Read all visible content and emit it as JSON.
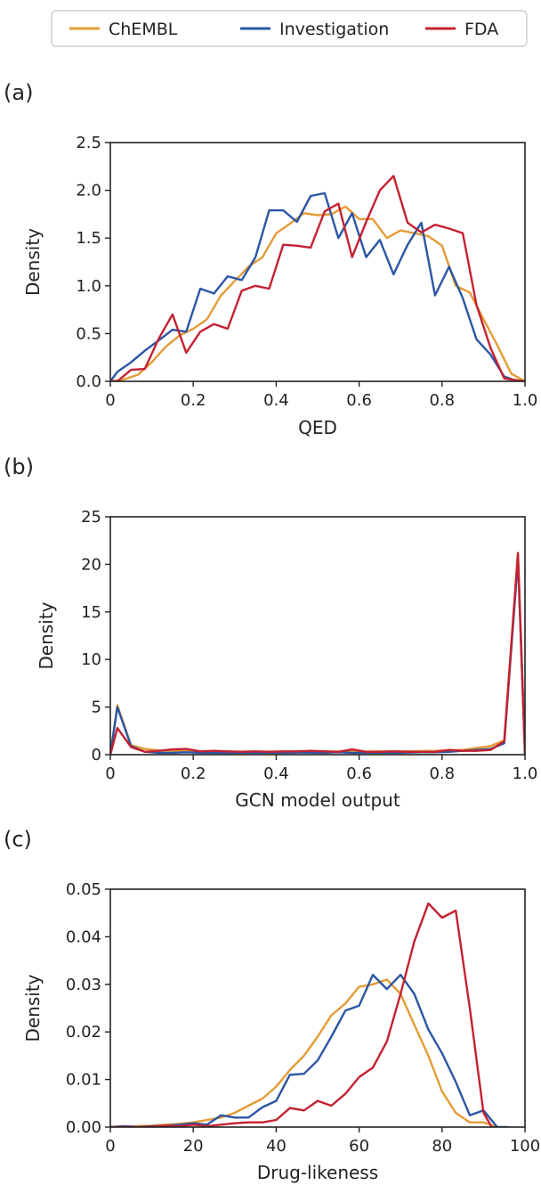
{
  "legend": {
    "placement": "top-center",
    "entries": [
      {
        "label": "ChEMBL",
        "color": "#E39C36"
      },
      {
        "label": "Investigation",
        "color": "#2B56A4"
      },
      {
        "label": "FDA",
        "color": "#C42131"
      }
    ]
  },
  "chart_data": [
    {
      "type": "line",
      "panel_label": "(a)",
      "xlabel": "QED",
      "ylabel": "Density",
      "xlim": [
        0,
        1
      ],
      "ylim": [
        0,
        2.5
      ],
      "xticks": [
        0,
        0.2,
        0.4,
        0.6,
        0.8,
        1.0
      ],
      "xtick_labels": [
        "0",
        "0.2",
        "0.4",
        "0.6",
        "0.8",
        "1.0"
      ],
      "yticks": [
        0,
        0.5,
        1.0,
        1.5,
        2.0,
        2.5
      ],
      "ytick_labels": [
        "0.0",
        "0.5",
        "1.0",
        "1.5",
        "2.0",
        "2.5"
      ],
      "grid": false,
      "series": [
        {
          "name": "ChEMBL",
          "color": "#E39C36",
          "x": [
            0,
            0.033,
            0.067,
            0.1,
            0.133,
            0.167,
            0.2,
            0.233,
            0.267,
            0.3,
            0.333,
            0.367,
            0.4,
            0.433,
            0.467,
            0.5,
            0.533,
            0.567,
            0.6,
            0.633,
            0.667,
            0.7,
            0.733,
            0.767,
            0.8,
            0.833,
            0.867,
            0.9,
            0.933,
            0.967,
            1.0
          ],
          "y": [
            0.0,
            0.02,
            0.07,
            0.2,
            0.36,
            0.48,
            0.55,
            0.65,
            0.9,
            1.05,
            1.2,
            1.3,
            1.55,
            1.65,
            1.76,
            1.74,
            1.75,
            1.83,
            1.7,
            1.7,
            1.5,
            1.58,
            1.55,
            1.52,
            1.42,
            1.0,
            0.93,
            0.65,
            0.38,
            0.08,
            0.0
          ]
        },
        {
          "name": "Investigation",
          "color": "#2B56A4",
          "x": [
            0,
            0.017,
            0.05,
            0.083,
            0.117,
            0.15,
            0.183,
            0.217,
            0.25,
            0.283,
            0.317,
            0.35,
            0.383,
            0.417,
            0.45,
            0.483,
            0.517,
            0.55,
            0.583,
            0.617,
            0.65,
            0.683,
            0.717,
            0.75,
            0.783,
            0.817,
            0.85,
            0.883,
            0.917,
            0.95,
            0.983,
            1.0
          ],
          "y": [
            0.0,
            0.1,
            0.2,
            0.32,
            0.43,
            0.54,
            0.52,
            0.97,
            0.92,
            1.1,
            1.06,
            1.3,
            1.79,
            1.79,
            1.67,
            1.94,
            1.97,
            1.5,
            1.76,
            1.3,
            1.48,
            1.12,
            1.43,
            1.66,
            0.9,
            1.2,
            0.87,
            0.44,
            0.28,
            0.05,
            0.0,
            0.0
          ]
        },
        {
          "name": "FDA",
          "color": "#C42131",
          "x": [
            0,
            0.017,
            0.05,
            0.083,
            0.117,
            0.15,
            0.183,
            0.217,
            0.25,
            0.283,
            0.317,
            0.35,
            0.383,
            0.417,
            0.45,
            0.483,
            0.517,
            0.55,
            0.583,
            0.617,
            0.65,
            0.683,
            0.717,
            0.75,
            0.783,
            0.817,
            0.85,
            0.883,
            0.917,
            0.95,
            0.983,
            1.0
          ],
          "y": [
            0.0,
            0.0,
            0.12,
            0.13,
            0.45,
            0.7,
            0.3,
            0.52,
            0.6,
            0.55,
            0.95,
            1.0,
            0.97,
            1.43,
            1.42,
            1.4,
            1.78,
            1.86,
            1.3,
            1.67,
            2.0,
            2.15,
            1.66,
            1.56,
            1.64,
            1.6,
            1.55,
            0.8,
            0.35,
            0.03,
            0.01,
            0.0
          ]
        }
      ]
    },
    {
      "type": "line",
      "panel_label": "(b)",
      "xlabel": "GCN model output",
      "ylabel": "Density",
      "xlim": [
        0,
        1
      ],
      "ylim": [
        0,
        25
      ],
      "xticks": [
        0,
        0.2,
        0.4,
        0.6,
        0.8,
        1.0
      ],
      "xtick_labels": [
        "0",
        "0.2",
        "0.4",
        "0.6",
        "0.8",
        "1.0"
      ],
      "yticks": [
        0,
        5,
        10,
        15,
        20,
        25
      ],
      "ytick_labels": [
        "0",
        "5",
        "10",
        "15",
        "20",
        "25"
      ],
      "grid": false,
      "series": [
        {
          "name": "ChEMBL",
          "color": "#E39C36",
          "x": [
            0,
            0.017,
            0.05,
            0.083,
            0.117,
            0.15,
            0.183,
            0.217,
            0.25,
            0.283,
            0.317,
            0.35,
            0.383,
            0.417,
            0.45,
            0.483,
            0.517,
            0.55,
            0.583,
            0.617,
            0.65,
            0.683,
            0.717,
            0.75,
            0.783,
            0.817,
            0.85,
            0.883,
            0.917,
            0.95,
            0.983,
            1.0
          ],
          "y": [
            0.0,
            5.2,
            1.0,
            0.6,
            0.45,
            0.4,
            0.38,
            0.35,
            0.35,
            0.33,
            0.32,
            0.32,
            0.32,
            0.32,
            0.32,
            0.33,
            0.33,
            0.33,
            0.33,
            0.34,
            0.35,
            0.35,
            0.36,
            0.38,
            0.4,
            0.45,
            0.5,
            0.7,
            0.9,
            1.5,
            21.0,
            0.0
          ]
        },
        {
          "name": "Investigation",
          "color": "#2B56A4",
          "x": [
            0,
            0.017,
            0.05,
            0.083,
            0.117,
            0.15,
            0.183,
            0.217,
            0.25,
            0.283,
            0.317,
            0.35,
            0.383,
            0.417,
            0.45,
            0.483,
            0.517,
            0.55,
            0.583,
            0.617,
            0.65,
            0.683,
            0.717,
            0.75,
            0.783,
            0.817,
            0.85,
            0.883,
            0.917,
            0.95,
            0.983,
            1.0
          ],
          "y": [
            0.0,
            5.0,
            0.9,
            0.3,
            0.2,
            0.2,
            0.25,
            0.2,
            0.2,
            0.18,
            0.2,
            0.22,
            0.2,
            0.2,
            0.22,
            0.22,
            0.2,
            0.25,
            0.2,
            0.2,
            0.22,
            0.2,
            0.22,
            0.25,
            0.25,
            0.3,
            0.4,
            0.5,
            0.6,
            1.2,
            20.5,
            0.0
          ]
        },
        {
          "name": "FDA",
          "color": "#C42131",
          "x": [
            0,
            0.017,
            0.05,
            0.083,
            0.117,
            0.15,
            0.183,
            0.217,
            0.25,
            0.283,
            0.317,
            0.35,
            0.383,
            0.417,
            0.45,
            0.483,
            0.517,
            0.55,
            0.583,
            0.617,
            0.65,
            0.683,
            0.717,
            0.75,
            0.783,
            0.817,
            0.85,
            0.883,
            0.917,
            0.95,
            0.983,
            1.0
          ],
          "y": [
            0.0,
            2.8,
            0.8,
            0.3,
            0.4,
            0.55,
            0.6,
            0.35,
            0.4,
            0.35,
            0.3,
            0.35,
            0.3,
            0.35,
            0.35,
            0.4,
            0.35,
            0.3,
            0.55,
            0.3,
            0.3,
            0.35,
            0.3,
            0.3,
            0.3,
            0.5,
            0.4,
            0.4,
            0.5,
            1.4,
            21.2,
            0.0
          ]
        }
      ]
    },
    {
      "type": "line",
      "panel_label": "(c)",
      "xlabel": "Drug-likeness",
      "ylabel": "Density",
      "xlim": [
        0,
        100
      ],
      "ylim": [
        0,
        0.05
      ],
      "xticks": [
        0,
        20,
        40,
        60,
        80,
        100
      ],
      "xtick_labels": [
        "0",
        "20",
        "40",
        "60",
        "80",
        "100"
      ],
      "yticks": [
        0,
        0.01,
        0.02,
        0.03,
        0.04,
        0.05
      ],
      "ytick_labels": [
        "0.00",
        "0.01",
        "0.02",
        "0.03",
        "0.04",
        "0.05"
      ],
      "grid": false,
      "series": [
        {
          "name": "ChEMBL",
          "color": "#E39C36",
          "x": [
            0,
            3.3,
            6.7,
            10,
            13.3,
            16.7,
            20,
            23.3,
            26.7,
            30,
            33.3,
            36.7,
            40,
            43.3,
            46.7,
            50,
            53.3,
            56.7,
            60,
            63.3,
            66.7,
            70,
            73.3,
            76.7,
            80,
            83.3,
            86.7,
            90,
            93.3
          ],
          "y": [
            0.0,
            0.0001,
            0.0002,
            0.0003,
            0.0005,
            0.0007,
            0.001,
            0.0015,
            0.002,
            0.003,
            0.0045,
            0.006,
            0.0085,
            0.012,
            0.015,
            0.019,
            0.0235,
            0.026,
            0.0295,
            0.03,
            0.031,
            0.028,
            0.0215,
            0.015,
            0.0075,
            0.003,
            0.001,
            0.001,
            0.0
          ]
        },
        {
          "name": "Investigation",
          "color": "#2B56A4",
          "x": [
            0,
            3.3,
            6.7,
            10,
            13.3,
            16.7,
            20,
            23.3,
            26.7,
            30,
            33.3,
            36.7,
            40,
            43.3,
            46.7,
            50,
            53.3,
            56.7,
            60,
            63.3,
            66.7,
            70,
            73.3,
            76.7,
            80,
            83.3,
            86.7,
            90,
            93.3,
            96
          ],
          "y": [
            0.0,
            0.0002,
            0.0,
            0.0002,
            0.0003,
            0.0005,
            0.0008,
            0.0005,
            0.0025,
            0.002,
            0.002,
            0.0042,
            0.0055,
            0.011,
            0.0112,
            0.014,
            0.019,
            0.0245,
            0.0255,
            0.032,
            0.029,
            0.032,
            0.028,
            0.0205,
            0.0155,
            0.0095,
            0.0025,
            0.0035,
            0.0,
            0.0
          ]
        },
        {
          "name": "FDA",
          "color": "#C42131",
          "x": [
            0,
            3.3,
            6.7,
            10,
            13.3,
            16.7,
            20,
            23.3,
            26.7,
            30,
            33.3,
            36.7,
            40,
            43.3,
            46.7,
            50,
            53.3,
            56.7,
            60,
            63.3,
            66.7,
            70,
            73.3,
            76.7,
            80,
            83.3,
            86.7,
            90,
            92
          ],
          "y": [
            0.0,
            0.0,
            0.0,
            0.0001,
            0.0003,
            0.0002,
            0.0005,
            0.0002,
            0.0005,
            0.0008,
            0.001,
            0.001,
            0.0015,
            0.004,
            0.0035,
            0.0055,
            0.0045,
            0.007,
            0.0105,
            0.0125,
            0.018,
            0.028,
            0.039,
            0.047,
            0.044,
            0.0455,
            0.025,
            0.003,
            0.0
          ]
        }
      ]
    }
  ]
}
